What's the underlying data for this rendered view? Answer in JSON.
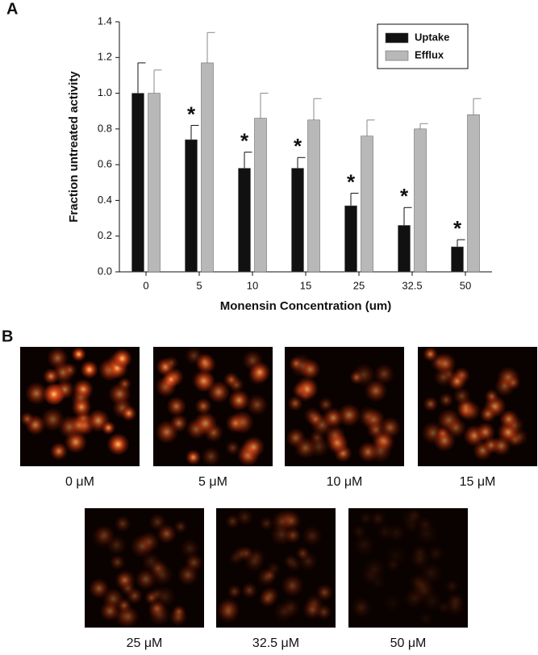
{
  "panel_labels": [
    "A",
    "B"
  ],
  "chart_data": {
    "type": "bar",
    "x_label": "Monensin Concentration (um)",
    "y_label": "Fraction untreated activity",
    "categories": [
      "0",
      "5",
      "10",
      "15",
      "25",
      "32.5",
      "50"
    ],
    "series": [
      {
        "name": "Uptake",
        "color": "#111111",
        "values": [
          1.0,
          0.74,
          0.58,
          0.58,
          0.37,
          0.26,
          0.14
        ],
        "errors": [
          0.17,
          0.08,
          0.09,
          0.06,
          0.07,
          0.1,
          0.04
        ]
      },
      {
        "name": "Efflux",
        "color": "#b8b8b8",
        "values": [
          1.0,
          1.17,
          0.86,
          0.85,
          0.76,
          0.8,
          0.88
        ],
        "errors": [
          0.13,
          0.17,
          0.14,
          0.12,
          0.09,
          0.03,
          0.09
        ]
      }
    ],
    "annotations": [
      {
        "text": "*",
        "category": "5"
      },
      {
        "text": "*",
        "category": "10"
      },
      {
        "text": "*",
        "category": "15"
      },
      {
        "text": "*",
        "category": "25"
      },
      {
        "text": "*",
        "category": "32.5"
      },
      {
        "text": "*",
        "category": "50"
      }
    ],
    "ylim": [
      0,
      1.4
    ],
    "yticks": [
      {
        "value": 0,
        "label": "0.0"
      },
      0.2,
      0.4,
      0.6,
      0.8,
      {
        "value": 1,
        "label": "1.0"
      },
      1.2,
      1.4
    ],
    "legend": "upper right"
  },
  "images": {
    "captions": [
      "0 μM",
      "5 μM",
      "10 μM",
      "15 μM",
      "25 μM",
      "32.5 μM",
      "50 μM"
    ]
  }
}
